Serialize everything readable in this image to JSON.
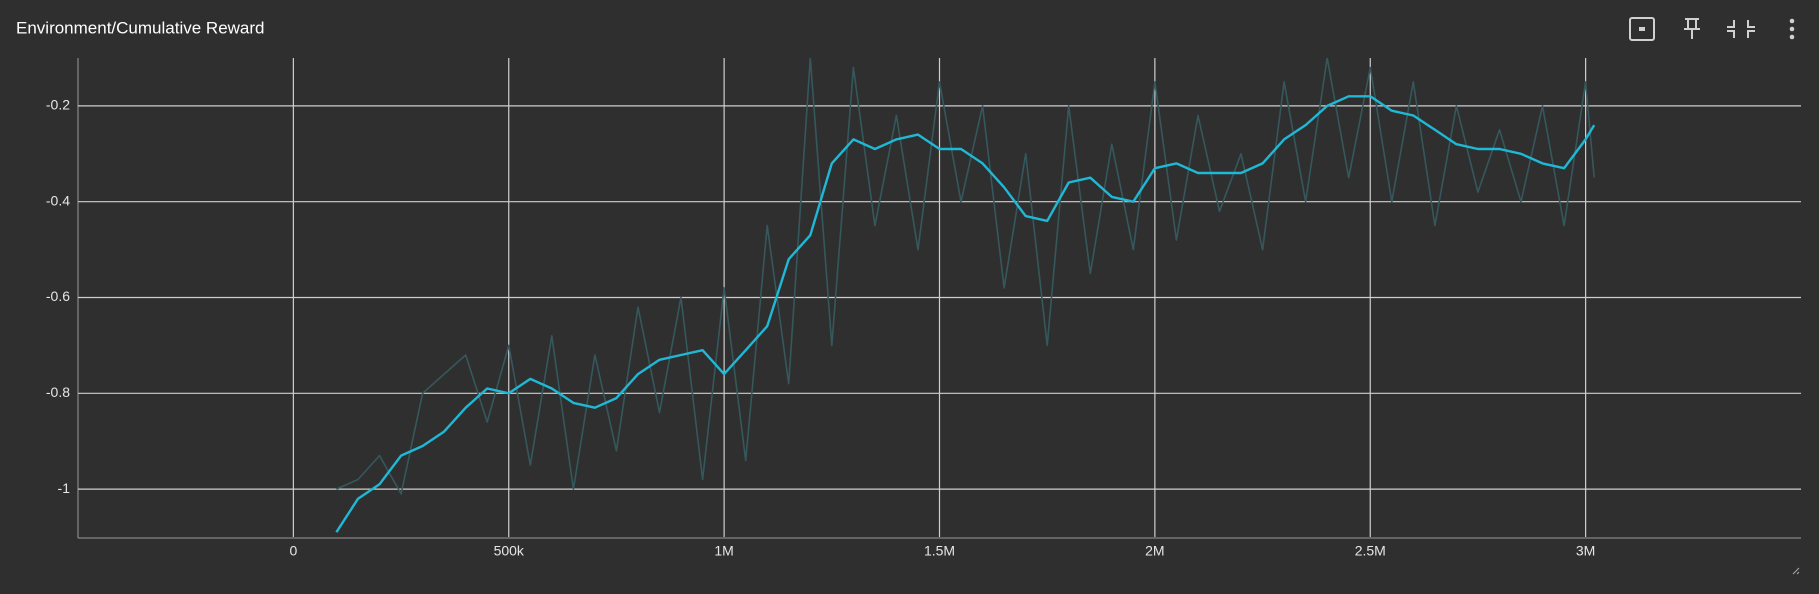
{
  "chart_data": {
    "type": "line",
    "title": "Environment/Cumulative Reward",
    "x": [
      100000,
      150000,
      200000,
      250000,
      300000,
      350000,
      400000,
      450000,
      500000,
      550000,
      600000,
      650000,
      700000,
      750000,
      800000,
      850000,
      900000,
      950000,
      1000000,
      1050000,
      1100000,
      1150000,
      1200000,
      1250000,
      1300000,
      1350000,
      1400000,
      1450000,
      1500000,
      1550000,
      1600000,
      1650000,
      1700000,
      1750000,
      1800000,
      1850000,
      1900000,
      1950000,
      2000000,
      2050000,
      2100000,
      2150000,
      2200000,
      2250000,
      2300000,
      2350000,
      2400000,
      2450000,
      2500000,
      2550000,
      2600000,
      2650000,
      2700000,
      2750000,
      2800000,
      2850000,
      2900000,
      2950000,
      3000000,
      3020000
    ],
    "series": [
      {
        "color": "#35585d",
        "values": [
          -1.0,
          -0.98,
          -0.93,
          -1.01,
          -0.8,
          -0.76,
          -0.72,
          -0.86,
          -0.7,
          -0.95,
          -0.68,
          -1.0,
          -0.72,
          -0.92,
          -0.62,
          -0.84,
          -0.6,
          -0.98,
          -0.58,
          -0.94,
          -0.45,
          -0.78,
          -0.1,
          -0.7,
          -0.12,
          -0.45,
          -0.22,
          -0.5,
          -0.15,
          -0.4,
          -0.2,
          -0.58,
          -0.3,
          -0.7,
          -0.2,
          -0.55,
          -0.28,
          -0.5,
          -0.15,
          -0.48,
          -0.22,
          -0.42,
          -0.3,
          -0.5,
          -0.15,
          -0.4,
          -0.1,
          -0.35,
          -0.12,
          -0.4,
          -0.15,
          -0.45,
          -0.2,
          -0.38,
          -0.25,
          -0.4,
          -0.2,
          -0.45,
          -0.15,
          -0.35
        ]
      },
      {
        "color": "#1fb8d6",
        "values": [
          -1.09,
          -1.02,
          -0.99,
          -0.93,
          -0.91,
          -0.88,
          -0.83,
          -0.79,
          -0.8,
          -0.77,
          -0.79,
          -0.82,
          -0.83,
          -0.81,
          -0.76,
          -0.73,
          -0.72,
          -0.71,
          -0.76,
          -0.71,
          -0.66,
          -0.52,
          -0.47,
          -0.32,
          -0.27,
          -0.29,
          -0.27,
          -0.26,
          -0.29,
          -0.29,
          -0.32,
          -0.37,
          -0.43,
          -0.44,
          -0.36,
          -0.35,
          -0.39,
          -0.4,
          -0.33,
          -0.32,
          -0.34,
          -0.34,
          -0.34,
          -0.32,
          -0.27,
          -0.24,
          -0.2,
          -0.18,
          -0.18,
          -0.21,
          -0.22,
          -0.25,
          -0.28,
          -0.29,
          -0.29,
          -0.3,
          -0.32,
          -0.33,
          -0.27,
          -0.24
        ]
      }
    ],
    "xlim": [
      -500000,
      3500000
    ],
    "xticks": [
      0,
      {
        "value": 500000,
        "label": "500k"
      },
      {
        "value": 1000000,
        "label": "1M"
      },
      {
        "value": 1500000,
        "label": "1.5M"
      },
      {
        "value": 2000000,
        "label": "2M"
      },
      {
        "value": 2500000,
        "label": "2.5M"
      },
      {
        "value": 3000000,
        "label": "3M"
      }
    ],
    "ylim": [
      -1.1,
      -0.1
    ],
    "yticks": [
      -1,
      -0.8,
      -0.6,
      -0.4,
      -0.2
    ],
    "grid": true
  }
}
